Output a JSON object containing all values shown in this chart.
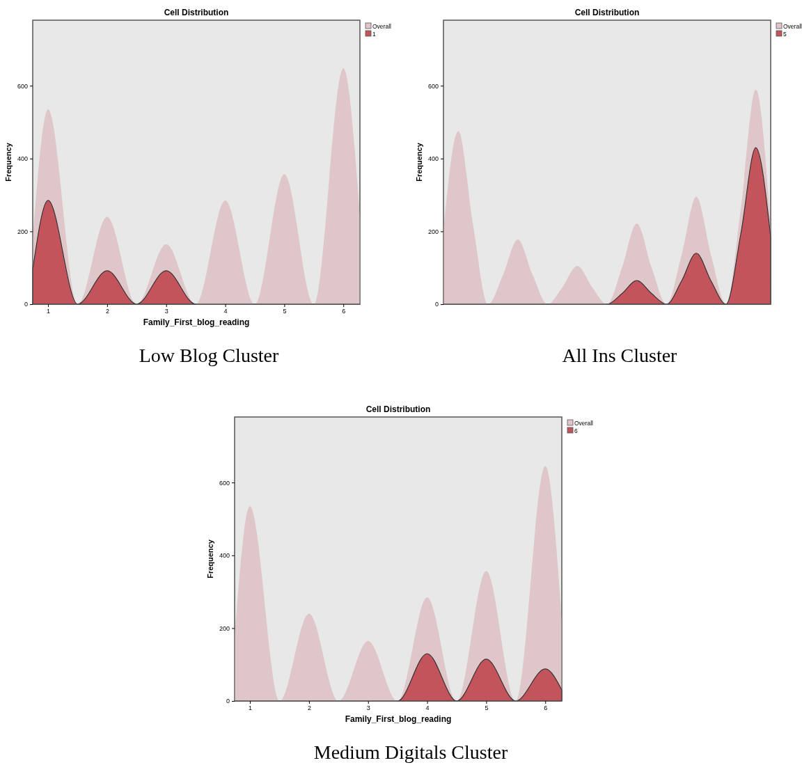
{
  "chart_data": [
    {
      "type": "area",
      "title": "Cell Distribution",
      "xlabel": "Family_First_blog_reading",
      "ylabel": "Frequency",
      "annotations": [
        "Low Blog Cluster"
      ],
      "x": [
        0.74,
        1,
        1.5,
        2,
        2.5,
        3,
        3.5,
        4,
        4.5,
        5,
        5.5,
        6,
        6.28
      ],
      "xlim": [
        0.74,
        6.28
      ],
      "xticks": [
        1,
        2,
        3,
        4,
        5,
        6
      ],
      "ylim": [
        0,
        780
      ],
      "yticks": [
        0,
        200,
        400,
        600
      ],
      "legend": "top right",
      "series": [
        {
          "name": "Overall",
          "color": "#dfc7c9",
          "values": [
            180,
            535,
            0,
            240,
            0,
            165,
            0,
            285,
            0,
            357,
            0,
            648,
            240
          ]
        },
        {
          "name": "1",
          "color": "#c4545c",
          "values": [
            95,
            285,
            0,
            92,
            0,
            92,
            0,
            0,
            0,
            0,
            0,
            0,
            0
          ]
        }
      ]
    },
    {
      "type": "area",
      "title": "Cell Distribution",
      "ylabel": "Frequency",
      "annotations": [
        "All Ins Cluster"
      ],
      "categories": [
        null,
        null,
        null,
        null,
        null,
        null,
        null,
        null,
        null,
        null,
        null,
        null,
        null,
        null,
        null,
        null,
        null,
        null,
        null,
        null,
        null,
        null,
        null
      ],
      "ylim": [
        0,
        780
      ],
      "yticks": [
        0,
        200,
        400,
        600
      ],
      "legend": "top right",
      "tick_labels": "y",
      "series": [
        {
          "name": "Overall",
          "color": "#dfc7c9",
          "values": [
            205,
            475,
            215,
            0,
            80,
            178,
            80,
            0,
            47,
            105,
            47,
            0,
            100,
            222,
            100,
            0,
            133,
            295,
            133,
            0,
            265,
            590,
            210
          ]
        },
        {
          "name": "5",
          "color": "#c4545c",
          "values": [
            0,
            0,
            0,
            0,
            0,
            0,
            0,
            0,
            0,
            0,
            0,
            0,
            29,
            65,
            29,
            0,
            63,
            140,
            63,
            0,
            195,
            430,
            185
          ]
        }
      ]
    },
    {
      "type": "area",
      "title": "Cell Distribution",
      "xlabel": "Family_First_blog_reading",
      "ylabel": "Frequency",
      "annotations": [
        "Medium Digitals Cluster"
      ],
      "x": [
        0.74,
        1,
        1.5,
        2,
        2.5,
        3,
        3.5,
        4,
        4.5,
        5,
        5.5,
        6,
        6.28
      ],
      "xlim": [
        0.74,
        6.28
      ],
      "xticks": [
        1,
        2,
        3,
        4,
        5,
        6
      ],
      "ylim": [
        0,
        780
      ],
      "yticks": [
        0,
        200,
        400,
        600
      ],
      "legend": "top right",
      "series": [
        {
          "name": "Overall",
          "color": "#dfc7c9",
          "values": [
            180,
            535,
            0,
            240,
            0,
            165,
            0,
            285,
            0,
            357,
            0,
            645,
            220
          ]
        },
        {
          "name": "6",
          "color": "#c4545c",
          "values": [
            0,
            0,
            0,
            0,
            0,
            0,
            0,
            130,
            0,
            115,
            0,
            88,
            30
          ]
        }
      ]
    }
  ]
}
